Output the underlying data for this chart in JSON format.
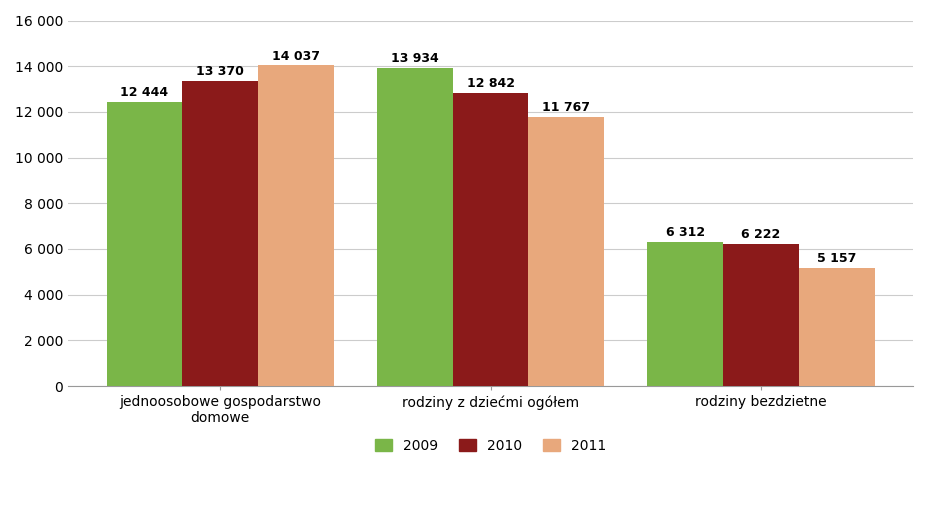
{
  "categories": [
    "jednoosobowe gospodarstwo\ndomowe",
    "rodziny z dziećmi ogółem",
    "rodziny bezdzietne"
  ],
  "series": {
    "2009": [
      12444,
      13934,
      6312
    ],
    "2010": [
      13370,
      12842,
      6222
    ],
    "2011": [
      14037,
      11767,
      5157
    ]
  },
  "colors": {
    "2009": "#7ab648",
    "2010": "#8b1a1a",
    "2011": "#e8a87c"
  },
  "legend_labels": [
    "2009",
    "2010",
    "2011"
  ],
  "ylim": [
    0,
    16000
  ],
  "yticks": [
    0,
    2000,
    4000,
    6000,
    8000,
    10000,
    12000,
    14000,
    16000
  ],
  "bar_width": 0.28,
  "label_fontsize": 9,
  "tick_fontsize": 10,
  "legend_fontsize": 10,
  "background_color": "#ffffff",
  "grid_color": "#cccccc"
}
